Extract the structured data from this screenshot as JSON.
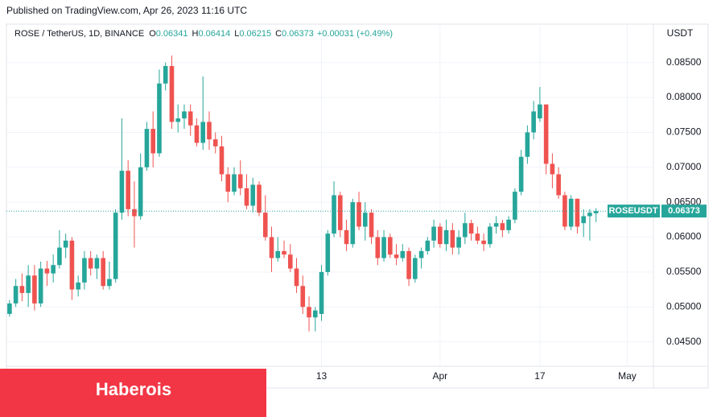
{
  "published": "Published on TradingView.com, Apr 26, 2023 11:16 UTC",
  "chart_data": {
    "type": "candlestick",
    "header": {
      "symbol": "ROSE / TetherUS, 1D, BINANCE",
      "ohlc": [
        {
          "label": "O",
          "value": 0.06341
        },
        {
          "label": "H",
          "value": 0.06414
        },
        {
          "label": "L",
          "value": 0.06215
        },
        {
          "label": "C",
          "value": 0.06373
        }
      ],
      "change": "+0.00031 (+0.49%)"
    },
    "y_unit": "USDT",
    "ticker_label": "ROSEUSDT",
    "up_color": "#26a69a",
    "down_color": "#ef5350",
    "open": [
      0.049,
      0.0505,
      0.053,
      0.052,
      0.0545,
      0.0505,
      0.0555,
      0.0548,
      0.056,
      0.0585,
      0.0595,
      0.0525,
      0.0535,
      0.057,
      0.0555,
      0.057,
      0.053,
      0.054,
      0.0635,
      0.0695,
      0.064,
      0.063,
      0.07,
      0.0755,
      0.072,
      0.082,
      0.0845,
      0.0765,
      0.077,
      0.078,
      0.076,
      0.0735,
      0.0765,
      0.074,
      0.073,
      0.069,
      0.0665,
      0.069,
      0.067,
      0.0645,
      0.0675,
      0.0635,
      0.06,
      0.057,
      0.058,
      0.0575,
      0.0555,
      0.053,
      0.05,
      0.0485,
      0.049,
      0.055,
      0.0605,
      0.066,
      0.061,
      0.059,
      0.065,
      0.0615,
      0.0635,
      0.06,
      0.057,
      0.06,
      0.0575,
      0.057,
      0.058,
      0.054,
      0.057,
      0.058,
      0.0595,
      0.0615,
      0.059,
      0.061,
      0.0585,
      0.06,
      0.062,
      0.0605,
      0.0595,
      0.059,
      0.0615,
      0.062,
      0.061,
      0.0625,
      0.0665,
      0.0715,
      0.075,
      0.077,
      0.079,
      0.0705,
      0.069,
      0.066,
      0.0615,
      0.0655,
      0.062,
      0.063,
      0.06341
    ],
    "high": [
      0.051,
      0.054,
      0.0548,
      0.056,
      0.056,
      0.0565,
      0.0566,
      0.0575,
      0.061,
      0.0605,
      0.06,
      0.0545,
      0.058,
      0.058,
      0.0575,
      0.058,
      0.0565,
      0.064,
      0.077,
      0.071,
      0.068,
      0.072,
      0.0765,
      0.078,
      0.084,
      0.085,
      0.086,
      0.079,
      0.079,
      0.079,
      0.077,
      0.083,
      0.078,
      0.075,
      0.0745,
      0.07,
      0.07,
      0.071,
      0.069,
      0.0685,
      0.068,
      0.066,
      0.0615,
      0.06,
      0.0595,
      0.059,
      0.057,
      0.0545,
      0.0515,
      0.05,
      0.056,
      0.061,
      0.068,
      0.0665,
      0.0625,
      0.0655,
      0.0665,
      0.065,
      0.064,
      0.061,
      0.061,
      0.0605,
      0.059,
      0.059,
      0.0585,
      0.0575,
      0.0585,
      0.06,
      0.0625,
      0.062,
      0.0625,
      0.062,
      0.061,
      0.0635,
      0.0625,
      0.0615,
      0.0605,
      0.062,
      0.063,
      0.0625,
      0.063,
      0.067,
      0.0725,
      0.076,
      0.0795,
      0.0815,
      0.079,
      0.072,
      0.07,
      0.0665,
      0.066,
      0.0655,
      0.064,
      0.064,
      0.06414
    ],
    "low": [
      0.0486,
      0.05,
      0.0508,
      0.05,
      0.0495,
      0.05,
      0.053,
      0.0535,
      0.0555,
      0.057,
      0.051,
      0.0515,
      0.0525,
      0.0545,
      0.054,
      0.0525,
      0.0525,
      0.0535,
      0.0625,
      0.063,
      0.0585,
      0.0625,
      0.0695,
      0.07,
      0.0715,
      0.081,
      0.0755,
      0.075,
      0.0755,
      0.0745,
      0.073,
      0.0725,
      0.0725,
      0.072,
      0.068,
      0.065,
      0.066,
      0.066,
      0.064,
      0.0635,
      0.063,
      0.0595,
      0.055,
      0.0565,
      0.057,
      0.055,
      0.052,
      0.049,
      0.0465,
      0.0465,
      0.048,
      0.0545,
      0.06,
      0.06,
      0.058,
      0.0585,
      0.061,
      0.0595,
      0.059,
      0.056,
      0.0565,
      0.057,
      0.056,
      0.0565,
      0.053,
      0.0535,
      0.0555,
      0.0575,
      0.0585,
      0.0585,
      0.058,
      0.0575,
      0.0575,
      0.059,
      0.0595,
      0.059,
      0.058,
      0.0585,
      0.0605,
      0.06,
      0.0605,
      0.062,
      0.066,
      0.0705,
      0.074,
      0.0765,
      0.069,
      0.067,
      0.0655,
      0.061,
      0.061,
      0.0605,
      0.06,
      0.0595,
      0.06215
    ],
    "close": [
      0.0505,
      0.053,
      0.052,
      0.0545,
      0.0505,
      0.0555,
      0.0548,
      0.056,
      0.0585,
      0.0595,
      0.0525,
      0.0535,
      0.057,
      0.0555,
      0.057,
      0.053,
      0.054,
      0.0635,
      0.0695,
      0.064,
      0.063,
      0.07,
      0.0755,
      0.072,
      0.082,
      0.0845,
      0.0765,
      0.077,
      0.078,
      0.076,
      0.0735,
      0.0765,
      0.074,
      0.073,
      0.069,
      0.0665,
      0.069,
      0.067,
      0.0645,
      0.0675,
      0.0635,
      0.06,
      0.057,
      0.058,
      0.0575,
      0.0555,
      0.053,
      0.05,
      0.0485,
      0.0495,
      0.055,
      0.0605,
      0.066,
      0.061,
      0.059,
      0.065,
      0.0615,
      0.0635,
      0.06,
      0.057,
      0.06,
      0.0575,
      0.057,
      0.058,
      0.054,
      0.057,
      0.058,
      0.0595,
      0.0615,
      0.059,
      0.061,
      0.0585,
      0.06,
      0.062,
      0.0605,
      0.0595,
      0.059,
      0.0615,
      0.062,
      0.061,
      0.0625,
      0.0665,
      0.0715,
      0.075,
      0.078,
      0.079,
      0.0705,
      0.069,
      0.066,
      0.0615,
      0.0655,
      0.0615,
      0.063,
      0.0635,
      0.06373
    ],
    "xlim": [
      -0.5,
      103.2
    ],
    "xticks": [
      {
        "value": 50,
        "label": "13"
      },
      {
        "value": 69,
        "label": "Apr"
      },
      {
        "value": 85,
        "label": "17"
      },
      {
        "value": 99,
        "label": "May"
      }
    ],
    "ylim": [
      0.0415,
      0.0905
    ],
    "yticks": [
      {
        "value": 0.045,
        "label": "0.04500"
      },
      {
        "value": 0.05,
        "label": "0.05000"
      },
      {
        "value": 0.055,
        "label": "0.05500"
      },
      {
        "value": 0.06,
        "label": "0.06000"
      },
      {
        "value": 0.065,
        "label": "0.06500"
      },
      {
        "value": 0.07,
        "label": "0.07000"
      },
      {
        "value": 0.075,
        "label": "0.07500"
      },
      {
        "value": 0.08,
        "label": "0.08000"
      },
      {
        "value": 0.085,
        "label": "0.08500"
      }
    ],
    "grid": true
  },
  "banner": "Haberois"
}
